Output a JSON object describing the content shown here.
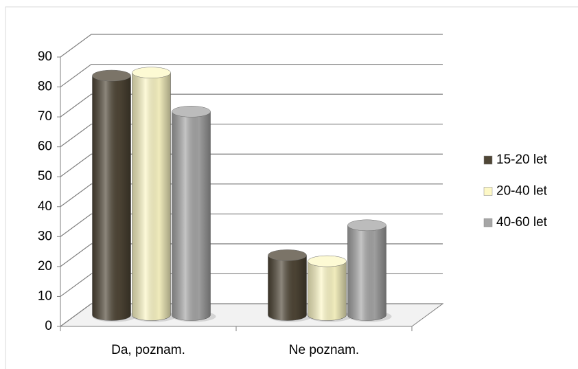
{
  "chart_data": {
    "type": "bar3d",
    "categories": [
      "Da, poznam.",
      "Ne poznam."
    ],
    "series": [
      {
        "name": "15-20 let",
        "color": "#4f4636",
        "values": [
          80,
          20
        ]
      },
      {
        "name": "20-40 let",
        "color": "#fdf8c6",
        "values": [
          81,
          18
        ]
      },
      {
        "name": "40-60 let",
        "color": "#a6a6a6",
        "values": [
          68,
          30
        ]
      }
    ],
    "ylim": [
      0,
      90
    ],
    "yticks": [
      0,
      10,
      20,
      30,
      40,
      50,
      60,
      70,
      80,
      90
    ],
    "grid": true,
    "legend": "right"
  }
}
